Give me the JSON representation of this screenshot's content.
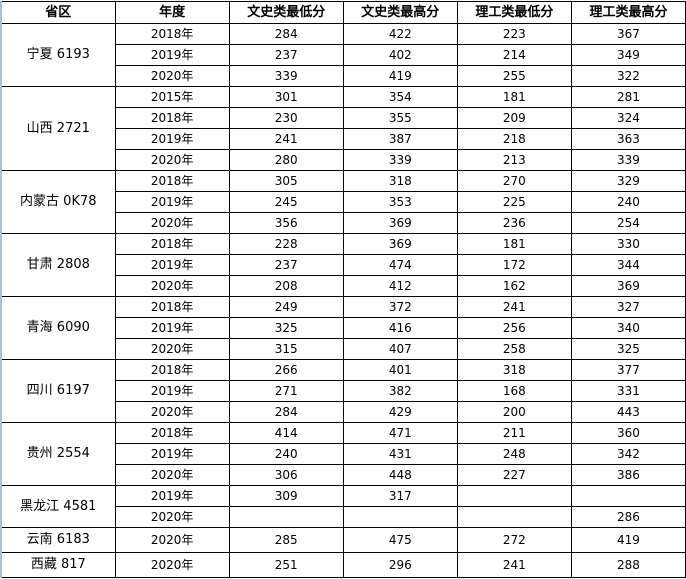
{
  "headers": [
    "省区",
    "年度",
    "文史类最低分",
    "文史类最高分",
    "理工类最低分",
    "理工类最高分"
  ],
  "provinces": [
    {
      "name": "宁夏 6193",
      "rows": [
        [
          "2018年",
          "284",
          "422",
          "223",
          "367"
        ],
        [
          "2019年",
          "237",
          "402",
          "214",
          "349"
        ],
        [
          "2020年",
          "339",
          "419",
          "255",
          "322"
        ]
      ]
    },
    {
      "name": "山西 2721",
      "rows": [
        [
          "2015年",
          "301",
          "354",
          "181",
          "281"
        ],
        [
          "2018年",
          "230",
          "355",
          "209",
          "324"
        ],
        [
          "2019年",
          "241",
          "387",
          "218",
          "363"
        ],
        [
          "2020年",
          "280",
          "339",
          "213",
          "339"
        ]
      ]
    },
    {
      "name": "内蒙古 0K78",
      "rows": [
        [
          "2018年",
          "305",
          "318",
          "270",
          "329"
        ],
        [
          "2019年",
          "245",
          "353",
          "225",
          "240"
        ],
        [
          "2020年",
          "356",
          "369",
          "236",
          "254"
        ]
      ]
    },
    {
      "name": "甘肃 2808",
      "rows": [
        [
          "2018年",
          "228",
          "369",
          "181",
          "330"
        ],
        [
          "2019年",
          "237",
          "474",
          "172",
          "344"
        ],
        [
          "2020年",
          "208",
          "412",
          "162",
          "369"
        ]
      ]
    },
    {
      "name": "青海 6090",
      "rows": [
        [
          "2018年",
          "249",
          "372",
          "241",
          "327"
        ],
        [
          "2019年",
          "325",
          "416",
          "256",
          "340"
        ],
        [
          "2020年",
          "315",
          "407",
          "258",
          "325"
        ]
      ]
    },
    {
      "name": "四川 6197",
      "rows": [
        [
          "2018年",
          "266",
          "401",
          "318",
          "377"
        ],
        [
          "2019年",
          "271",
          "382",
          "168",
          "331"
        ],
        [
          "2020年",
          "284",
          "429",
          "200",
          "443"
        ]
      ]
    },
    {
      "name": "贵州 2554",
      "rows": [
        [
          "2018年",
          "414",
          "471",
          "211",
          "360"
        ],
        [
          "2019年",
          "240",
          "431",
          "248",
          "342"
        ],
        [
          "2020年",
          "306",
          "448",
          "227",
          "386"
        ]
      ]
    },
    {
      "name": "黑龙江 4581",
      "rows": [
        [
          "2019年",
          "309",
          "317",
          "",
          ""
        ],
        [
          "2020年",
          "",
          "",
          "",
          "286"
        ]
      ]
    },
    {
      "name": "云南 6183",
      "rows": [
        [
          "2020年",
          "285",
          "475",
          "272",
          "419"
        ]
      ]
    },
    {
      "name": "西藏  817",
      "rows": [
        [
          "2020年",
          "251",
          "296",
          "241",
          "288"
        ]
      ]
    }
  ]
}
